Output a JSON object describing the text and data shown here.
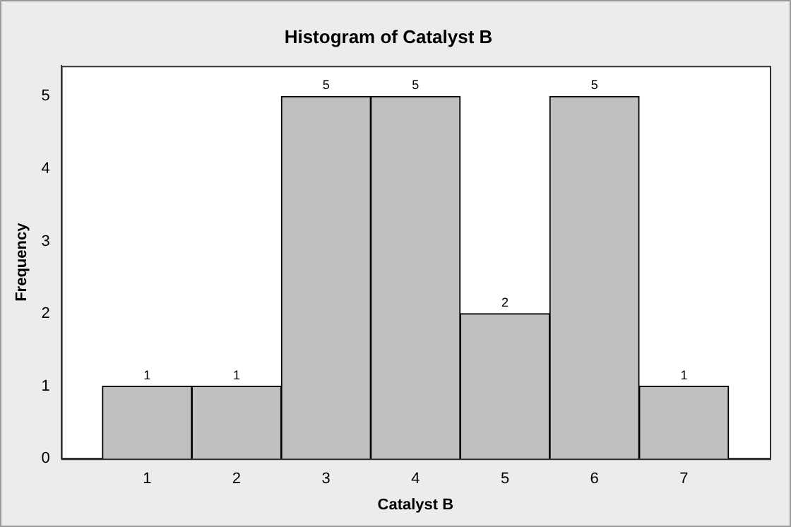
{
  "chart_data": {
    "type": "histogram",
    "title": "Histogram of Catalyst B",
    "xlabel": "Catalyst B",
    "ylabel": "Frequency",
    "bins": [
      0.5,
      1.5,
      2.5,
      3.5,
      4.5,
      5.5,
      6.5,
      7.5
    ],
    "values": [
      1,
      1,
      5,
      5,
      2,
      5,
      1
    ],
    "color": "#c0c0c0",
    "xlim": [
      0.04,
      7.96
    ],
    "xticks": [
      1,
      2,
      3,
      4,
      5,
      6,
      7
    ],
    "ylim": [
      0,
      5.42
    ],
    "yticks": [
      0,
      1,
      2,
      3,
      4,
      5
    ],
    "data_labels": true,
    "grid": false,
    "legend": false
  }
}
